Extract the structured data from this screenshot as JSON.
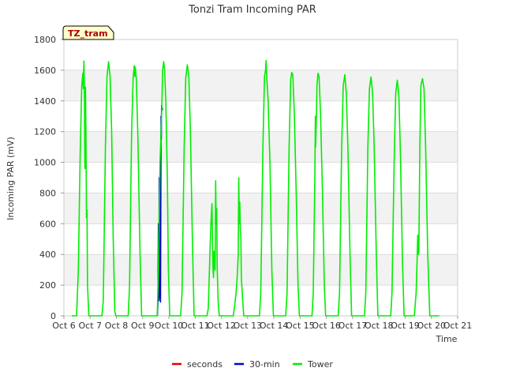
{
  "chart_data": {
    "type": "line",
    "title": "Tonzi Tram Incoming PAR",
    "badge": "TZ_tram",
    "xlabel": "Time",
    "ylabel": "Incoming PAR (mV)",
    "xlim": [
      6,
      21
    ],
    "ylim": [
      0,
      1800
    ],
    "x_ticks": [
      {
        "value": 6,
        "label": "Oct 6"
      },
      {
        "value": 7,
        "label": "Oct 7"
      },
      {
        "value": 8,
        "label": "Oct 8"
      },
      {
        "value": 9,
        "label": "Oct 9"
      },
      {
        "value": 10,
        "label": "Oct 10"
      },
      {
        "value": 11,
        "label": "Oct 11"
      },
      {
        "value": 12,
        "label": "Oct 12"
      },
      {
        "value": 13,
        "label": "Oct 13"
      },
      {
        "value": 14,
        "label": "Oct 14"
      },
      {
        "value": 15,
        "label": "Oct 15"
      },
      {
        "value": 16,
        "label": "Oct 16"
      },
      {
        "value": 17,
        "label": "Oct 17"
      },
      {
        "value": 18,
        "label": "Oct 18"
      },
      {
        "value": 19,
        "label": "Oct 19"
      },
      {
        "value": 20,
        "label": "Oct 20"
      },
      {
        "value": 21,
        "label": "Oct 21"
      }
    ],
    "y_ticks": [
      0,
      200,
      400,
      600,
      800,
      1000,
      1200,
      1400,
      1600,
      1800
    ],
    "background_bands": [
      [
        200,
        400
      ],
      [
        600,
        800
      ],
      [
        1000,
        1200
      ],
      [
        1400,
        1600
      ]
    ],
    "series": [
      {
        "name": "seconds",
        "color": "#dd0000",
        "points": []
      },
      {
        "name": "30-min",
        "color": "#0000cc",
        "points": [
          [
            9.56,
            0
          ],
          [
            9.58,
            80
          ],
          [
            9.6,
            600
          ],
          [
            9.62,
            100
          ],
          [
            9.63,
            900
          ],
          [
            9.65,
            120
          ],
          [
            9.66,
            1000
          ],
          [
            9.68,
            90
          ],
          [
            9.7,
            1300
          ],
          [
            9.71,
            1150
          ],
          [
            9.72,
            1370
          ],
          [
            9.74,
            1340
          ],
          [
            9.75,
            1350
          ],
          [
            9.76,
            1345
          ]
        ]
      },
      {
        "name": "Tower",
        "color": "#00ee00",
        "points": [
          [
            6.3,
            0
          ],
          [
            6.48,
            0
          ],
          [
            6.55,
            300
          ],
          [
            6.62,
            1050
          ],
          [
            6.68,
            1500
          ],
          [
            6.72,
            1580
          ],
          [
            6.74,
            1480
          ],
          [
            6.76,
            1660
          ],
          [
            6.78,
            1500
          ],
          [
            6.8,
            960
          ],
          [
            6.82,
            1490
          ],
          [
            6.84,
            1200
          ],
          [
            6.86,
            640
          ],
          [
            6.88,
            690
          ],
          [
            6.9,
            200
          ],
          [
            6.95,
            0
          ],
          [
            7.45,
            0
          ],
          [
            7.5,
            100
          ],
          [
            7.58,
            1100
          ],
          [
            7.64,
            1560
          ],
          [
            7.7,
            1655
          ],
          [
            7.76,
            1560
          ],
          [
            7.82,
            1200
          ],
          [
            7.88,
            500
          ],
          [
            7.94,
            30
          ],
          [
            7.98,
            0
          ],
          [
            8.45,
            0
          ],
          [
            8.5,
            200
          ],
          [
            8.58,
            1200
          ],
          [
            8.64,
            1560
          ],
          [
            8.68,
            1630
          ],
          [
            8.7,
            1560
          ],
          [
            8.72,
            1620
          ],
          [
            8.76,
            1540
          ],
          [
            8.82,
            1150
          ],
          [
            8.9,
            400
          ],
          [
            8.96,
            0
          ],
          [
            9.5,
            0
          ],
          [
            9.55,
            0
          ],
          [
            9.56,
            20
          ],
          [
            9.6,
            300
          ],
          [
            9.66,
            1000
          ],
          [
            9.72,
            1300
          ],
          [
            9.76,
            1600
          ],
          [
            9.8,
            1655
          ],
          [
            9.84,
            1600
          ],
          [
            9.88,
            1400
          ],
          [
            9.94,
            900
          ],
          [
            9.98,
            300
          ],
          [
            10.03,
            0
          ],
          [
            10.45,
            0
          ],
          [
            10.5,
            150
          ],
          [
            10.58,
            1100
          ],
          [
            10.64,
            1550
          ],
          [
            10.7,
            1635
          ],
          [
            10.76,
            1560
          ],
          [
            10.82,
            1200
          ],
          [
            10.9,
            450
          ],
          [
            10.96,
            0
          ],
          [
            11.45,
            0
          ],
          [
            11.5,
            50
          ],
          [
            11.56,
            400
          ],
          [
            11.6,
            600
          ],
          [
            11.64,
            730
          ],
          [
            11.66,
            500
          ],
          [
            11.68,
            300
          ],
          [
            11.7,
            250
          ],
          [
            11.72,
            420
          ],
          [
            11.74,
            400
          ],
          [
            11.76,
            300
          ],
          [
            11.78,
            880
          ],
          [
            11.8,
            600
          ],
          [
            11.82,
            700
          ],
          [
            11.84,
            300
          ],
          [
            11.88,
            80
          ],
          [
            11.92,
            0
          ],
          [
            12.45,
            0
          ],
          [
            12.5,
            60
          ],
          [
            12.56,
            150
          ],
          [
            12.6,
            250
          ],
          [
            12.64,
            400
          ],
          [
            12.66,
            900
          ],
          [
            12.68,
            600
          ],
          [
            12.7,
            740
          ],
          [
            12.72,
            550
          ],
          [
            12.74,
            530
          ],
          [
            12.76,
            250
          ],
          [
            12.8,
            130
          ],
          [
            12.85,
            0
          ],
          [
            13.45,
            0
          ],
          [
            13.5,
            150
          ],
          [
            13.58,
            1100
          ],
          [
            13.64,
            1560
          ],
          [
            13.68,
            1600
          ],
          [
            13.7,
            1663
          ],
          [
            13.72,
            1580
          ],
          [
            13.78,
            1400
          ],
          [
            13.85,
            1000
          ],
          [
            13.92,
            300
          ],
          [
            13.98,
            0
          ],
          [
            14.45,
            0
          ],
          [
            14.5,
            150
          ],
          [
            14.58,
            1100
          ],
          [
            14.64,
            1540
          ],
          [
            14.68,
            1585
          ],
          [
            14.72,
            1570
          ],
          [
            14.78,
            1300
          ],
          [
            14.85,
            800
          ],
          [
            14.92,
            200
          ],
          [
            14.97,
            0
          ],
          [
            15.45,
            0
          ],
          [
            15.5,
            150
          ],
          [
            15.56,
            900
          ],
          [
            15.58,
            1300
          ],
          [
            15.59,
            1100
          ],
          [
            15.62,
            1300
          ],
          [
            15.64,
            1500
          ],
          [
            15.68,
            1580
          ],
          [
            15.72,
            1560
          ],
          [
            15.78,
            1300
          ],
          [
            15.85,
            800
          ],
          [
            15.92,
            200
          ],
          [
            15.97,
            0
          ],
          [
            16.45,
            0
          ],
          [
            16.5,
            150
          ],
          [
            16.58,
            1100
          ],
          [
            16.64,
            1500
          ],
          [
            16.7,
            1570
          ],
          [
            16.76,
            1450
          ],
          [
            16.82,
            1100
          ],
          [
            16.9,
            400
          ],
          [
            16.96,
            0
          ],
          [
            17.45,
            0
          ],
          [
            17.5,
            150
          ],
          [
            17.58,
            1100
          ],
          [
            17.64,
            1480
          ],
          [
            17.7,
            1555
          ],
          [
            17.76,
            1450
          ],
          [
            17.82,
            1100
          ],
          [
            17.9,
            400
          ],
          [
            17.96,
            0
          ],
          [
            18.45,
            0
          ],
          [
            18.5,
            150
          ],
          [
            18.58,
            1000
          ],
          [
            18.64,
            1450
          ],
          [
            18.7,
            1535
          ],
          [
            18.76,
            1430
          ],
          [
            18.82,
            1050
          ],
          [
            18.9,
            350
          ],
          [
            18.96,
            0
          ],
          [
            19.35,
            0
          ],
          [
            19.42,
            150
          ],
          [
            19.46,
            400
          ],
          [
            19.48,
            525
          ],
          [
            19.5,
            400
          ],
          [
            19.52,
            420
          ],
          [
            19.56,
            1100
          ],
          [
            19.6,
            1500
          ],
          [
            19.66,
            1545
          ],
          [
            19.72,
            1480
          ],
          [
            19.78,
            1100
          ],
          [
            19.86,
            400
          ],
          [
            19.94,
            0
          ],
          [
            20.3,
            0
          ]
        ]
      }
    ],
    "legend": {
      "position": "bottom-center",
      "items": [
        {
          "label": "seconds",
          "color": "#dd0000"
        },
        {
          "label": "30-min",
          "color": "#0000cc"
        },
        {
          "label": "Tower",
          "color": "#00ee00"
        }
      ]
    }
  }
}
